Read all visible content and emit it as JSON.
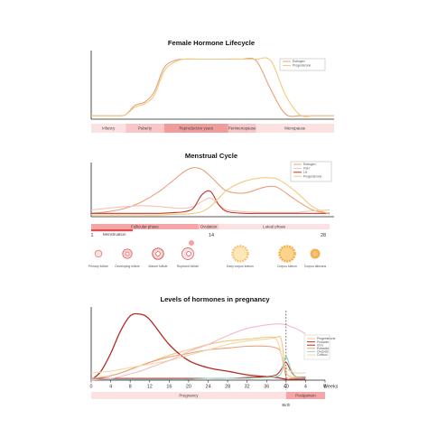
{
  "chart_data": [
    {
      "type": "line",
      "title": "Female Hormone Lifecycle",
      "x": [
        0,
        5,
        10,
        14,
        18,
        22,
        26,
        30,
        34,
        38,
        44,
        50,
        56,
        62,
        68,
        74,
        80,
        86,
        92,
        98,
        100
      ],
      "series": [
        {
          "name": "Estrogen",
          "color": "#e8a07c",
          "values": [
            4,
            4,
            4,
            5,
            16,
            20,
            32,
            60,
            68,
            70,
            70,
            70,
            70,
            70,
            68,
            34,
            6,
            4,
            4,
            4,
            4
          ]
        },
        {
          "name": "Progesterone",
          "color": "#f2c97e",
          "values": [
            4,
            4,
            4,
            5,
            14,
            18,
            28,
            56,
            66,
            70,
            70,
            70,
            70,
            70,
            70,
            68,
            28,
            5,
            4,
            4,
            4
          ]
        }
      ],
      "ylim": [
        0,
        80
      ],
      "xlim": [
        0,
        100
      ],
      "phases": [
        {
          "label": "Infancy",
          "from": 0,
          "to": 20,
          "color": "#fbe1e1"
        },
        {
          "label": "Puberty",
          "from": 20,
          "to": 42,
          "color": "#f7c6c6"
        },
        {
          "label": "Reproductive years",
          "from": 42,
          "to": 79,
          "color": "#f19c9c"
        },
        {
          "label": "Perimenopause",
          "from": 79,
          "to": 95,
          "color": "#f7c6c6"
        },
        {
          "label": "Menopause",
          "from": 95,
          "to": 140,
          "color": "#fbe1e1"
        }
      ],
      "legend_position": "top-right",
      "grid": false
    },
    {
      "type": "line",
      "title": "Menstrual Cycle",
      "x": [
        0,
        2,
        4,
        6,
        8,
        10,
        11,
        12,
        13,
        14,
        15,
        16,
        18,
        20,
        21,
        22,
        24,
        26,
        28
      ],
      "series": [
        {
          "name": "Estrogen",
          "color": "#e8a07c",
          "values": [
            4,
            6,
            10,
            18,
            30,
            46,
            54,
            58,
            56,
            48,
            38,
            30,
            28,
            34,
            36,
            34,
            20,
            8,
            4
          ]
        },
        {
          "name": "FSH",
          "color": "#f4c3b8",
          "values": [
            8,
            10,
            12,
            13,
            12,
            10,
            10,
            12,
            18,
            22,
            14,
            8,
            6,
            5,
            5,
            5,
            5,
            7,
            8
          ]
        },
        {
          "name": "LH",
          "color": "#c0392b",
          "values": [
            4,
            4,
            4,
            4,
            4,
            5,
            6,
            10,
            26,
            30,
            14,
            6,
            4,
            4,
            4,
            4,
            4,
            4,
            4
          ]
        },
        {
          "name": "Progesterone",
          "color": "#f2c97e",
          "values": [
            2,
            2,
            2,
            2,
            2,
            3,
            3,
            4,
            6,
            12,
            22,
            32,
            42,
            46,
            46,
            44,
            30,
            12,
            3
          ]
        }
      ],
      "xlim": [
        0,
        28
      ],
      "ylim": [
        0,
        62
      ],
      "phases": [
        {
          "label": "Follicular phase",
          "from": 0,
          "to": 12.6,
          "color": "#f5a5a5"
        },
        {
          "label": "Ovulation",
          "from": 12.6,
          "to": 15,
          "color": "#f7c6c6"
        },
        {
          "label": "Luteal phase",
          "from": 15,
          "to": 28,
          "color": "#fbe1e1"
        }
      ],
      "menstruation_label": "Menstruation",
      "cycle_ticks": [
        "1",
        "14",
        "28"
      ],
      "follicle_stages": [
        "Primary follicle",
        "Developing follicle",
        "Mature follicle",
        "Ruptured follicle",
        "Early corpus luteum",
        "Corpus luteum",
        "Corpus albicans"
      ],
      "legend_position": "top-right",
      "grid": false
    },
    {
      "type": "line",
      "title": "Levels of hormones in pregnancy",
      "x": [
        0,
        2,
        4,
        6,
        8,
        10,
        12,
        16,
        20,
        24,
        28,
        32,
        36,
        38,
        39,
        40,
        41,
        42,
        44
      ],
      "series": [
        {
          "name": "Progesterone",
          "color": "#f2c97e",
          "values": [
            2,
            3,
            5,
            8,
            12,
            16,
            20,
            28,
            34,
            40,
            44,
            46,
            48,
            48,
            46,
            10,
            4,
            3,
            3
          ]
        },
        {
          "name": "Prolactin",
          "color": "#c0392b",
          "values": [
            2,
            2,
            2,
            2,
            2,
            2,
            2,
            2,
            2,
            2,
            2,
            3,
            4,
            6,
            12,
            20,
            10,
            4,
            3
          ]
        },
        {
          "name": "hCG",
          "color": "#b22d22",
          "values": [
            0,
            10,
            30,
            55,
            72,
            74,
            68,
            40,
            22,
            14,
            10,
            6,
            4,
            3,
            2,
            1,
            1,
            1,
            1
          ]
        },
        {
          "name": "Estradiol",
          "color": "#f0a078",
          "values": [
            2,
            3,
            5,
            8,
            12,
            16,
            20,
            26,
            30,
            34,
            36,
            38,
            38,
            36,
            30,
            4,
            2,
            2,
            2
          ]
        },
        {
          "name": "Oxytocin",
          "color": "#8fd3c8",
          "values": [
            1,
            1,
            1,
            1,
            1,
            1,
            1,
            1,
            1,
            2,
            2,
            2,
            3,
            4,
            8,
            26,
            12,
            4,
            2
          ]
        },
        {
          "name": "Cortisol",
          "color": "#f4d7a6",
          "values": [
            8,
            9,
            10,
            12,
            14,
            16,
            18,
            22,
            28,
            34,
            40,
            44,
            46,
            46,
            30,
            14,
            10,
            8,
            8
          ]
        },
        {
          "name": "",
          "color": "#f3bcc9",
          "values": [
            0,
            1,
            2,
            4,
            7,
            10,
            14,
            22,
            32,
            40,
            50,
            58,
            62,
            63,
            63,
            62,
            60,
            58,
            52
          ]
        }
      ],
      "xlabel": "Weeks",
      "ticks": [
        "0",
        "4",
        "8",
        "12",
        "16",
        "20",
        "24",
        "28",
        "32",
        "36",
        "40",
        "4",
        "8"
      ],
      "xlim": [
        0,
        48
      ],
      "ylim": [
        0,
        80
      ],
      "phases": [
        {
          "label": "Pregnancy",
          "from": 0,
          "to": 40,
          "color": "#fbe1e1"
        },
        {
          "label": "Postpartum",
          "from": 40,
          "to": 48,
          "color": "#f5a5a5"
        }
      ],
      "marker": {
        "at": 40,
        "label": "Birth"
      },
      "legend_position": "top-right",
      "grid": false
    }
  ]
}
